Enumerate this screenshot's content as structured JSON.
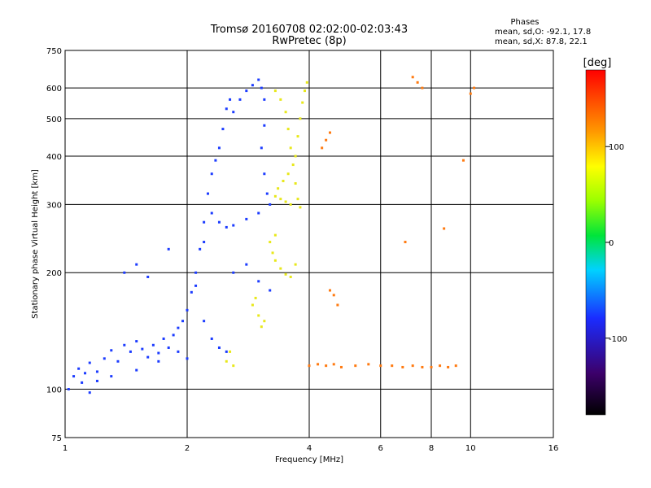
{
  "chart_data": {
    "type": "scatter",
    "title": "Tromsø 20160708 02:02:00-02:03:43",
    "subtitle": "RwPretec (8p)",
    "xlabel": "Frequency [MHz]",
    "ylabel": "Stationary phase Virtual Height [km]",
    "x_scale": "log",
    "y_scale": "log",
    "xlim": [
      1,
      16
    ],
    "ylim": [
      75,
      750
    ],
    "x_ticks": [
      1,
      2,
      4,
      6,
      8,
      10,
      16
    ],
    "y_ticks": [
      75,
      100,
      200,
      300,
      400,
      500,
      600,
      750
    ],
    "grid": true,
    "phase_stats": {
      "heading": "Phases",
      "line_o": "mean, sd,O: -92.1, 17.8",
      "line_x": "mean, sd,X:  87.8, 22.1"
    },
    "colorbar": {
      "label": "[deg]",
      "ticks": [
        100,
        0,
        -100
      ],
      "range": [
        -180,
        180
      ]
    },
    "series": [
      {
        "points": [
          [
            1.02,
            100
          ],
          [
            1.05,
            108
          ],
          [
            1.08,
            113
          ],
          [
            1.1,
            104
          ],
          [
            1.12,
            110
          ],
          [
            1.15,
            117
          ],
          [
            1.2,
            111
          ],
          [
            1.25,
            120
          ],
          [
            1.3,
            126
          ],
          [
            1.35,
            118
          ],
          [
            1.4,
            130
          ],
          [
            1.45,
            125
          ],
          [
            1.5,
            133
          ],
          [
            1.55,
            127
          ],
          [
            1.6,
            121
          ],
          [
            1.65,
            130
          ],
          [
            1.7,
            124
          ],
          [
            1.75,
            135
          ],
          [
            1.8,
            128
          ],
          [
            1.85,
            138
          ],
          [
            1.9,
            144
          ],
          [
            1.95,
            150
          ],
          [
            2.0,
            160
          ],
          [
            2.05,
            178
          ],
          [
            2.1,
            200
          ],
          [
            2.15,
            230
          ],
          [
            2.2,
            270
          ],
          [
            2.25,
            320
          ],
          [
            2.3,
            360
          ],
          [
            2.35,
            390
          ],
          [
            2.4,
            420
          ],
          [
            2.45,
            470
          ],
          [
            2.5,
            530
          ],
          [
            2.55,
            560
          ],
          [
            2.6,
            520
          ],
          [
            2.7,
            560
          ],
          [
            2.8,
            590
          ],
          [
            2.9,
            610
          ],
          [
            3.0,
            630
          ],
          [
            3.05,
            600
          ],
          [
            3.1,
            560
          ],
          [
            3.1,
            480
          ],
          [
            3.05,
            420
          ],
          [
            3.1,
            360
          ],
          [
            3.15,
            320
          ],
          [
            3.2,
            300
          ],
          [
            3.0,
            285
          ],
          [
            2.8,
            275
          ],
          [
            2.6,
            265
          ],
          [
            2.5,
            262
          ],
          [
            2.4,
            270
          ],
          [
            2.3,
            285
          ],
          [
            2.2,
            240
          ],
          [
            2.1,
            185
          ],
          [
            2.2,
            150
          ],
          [
            2.3,
            135
          ],
          [
            2.4,
            128
          ],
          [
            2.5,
            125
          ],
          [
            2.0,
            120
          ],
          [
            1.9,
            125
          ],
          [
            1.7,
            118
          ],
          [
            1.5,
            112
          ],
          [
            1.3,
            108
          ],
          [
            1.2,
            105
          ],
          [
            1.15,
            98
          ],
          [
            1.4,
            200
          ],
          [
            1.5,
            210
          ],
          [
            1.6,
            195
          ],
          [
            1.8,
            230
          ],
          [
            2.6,
            200
          ],
          [
            2.8,
            210
          ],
          [
            3.0,
            190
          ],
          [
            3.2,
            180
          ]
        ]
      },
      {
        "points": [
          [
            3.3,
            590
          ],
          [
            3.4,
            560
          ],
          [
            3.5,
            520
          ],
          [
            3.55,
            470
          ],
          [
            3.6,
            420
          ],
          [
            3.65,
            380
          ],
          [
            3.7,
            340
          ],
          [
            3.75,
            310
          ],
          [
            3.8,
            295
          ],
          [
            3.6,
            300
          ],
          [
            3.5,
            305
          ],
          [
            3.4,
            310
          ],
          [
            3.3,
            315
          ],
          [
            3.35,
            330
          ],
          [
            3.45,
            345
          ],
          [
            3.55,
            360
          ],
          [
            3.7,
            400
          ],
          [
            3.75,
            450
          ],
          [
            3.8,
            500
          ],
          [
            3.85,
            550
          ],
          [
            3.9,
            590
          ],
          [
            3.95,
            620
          ],
          [
            3.2,
            240
          ],
          [
            3.25,
            225
          ],
          [
            3.3,
            215
          ],
          [
            3.4,
            205
          ],
          [
            3.5,
            198
          ],
          [
            3.6,
            195
          ],
          [
            3.7,
            210
          ],
          [
            3.3,
            250
          ],
          [
            2.9,
            165
          ],
          [
            3.0,
            155
          ],
          [
            3.1,
            150
          ],
          [
            3.05,
            145
          ],
          [
            2.95,
            172
          ],
          [
            2.55,
            125
          ],
          [
            2.6,
            115
          ],
          [
            2.5,
            118
          ]
        ]
      },
      {
        "points": [
          [
            4.0,
            115
          ],
          [
            4.2,
            116
          ],
          [
            4.4,
            115
          ],
          [
            4.6,
            116
          ],
          [
            4.8,
            114
          ],
          [
            5.2,
            115
          ],
          [
            5.6,
            116
          ],
          [
            6.0,
            115
          ],
          [
            6.4,
            115
          ],
          [
            6.8,
            114
          ],
          [
            7.2,
            115
          ],
          [
            7.6,
            114
          ],
          [
            8.0,
            114
          ],
          [
            8.4,
            115
          ],
          [
            8.8,
            114
          ],
          [
            9.2,
            115
          ],
          [
            4.5,
            180
          ],
          [
            4.6,
            175
          ],
          [
            4.7,
            165
          ],
          [
            4.3,
            420
          ],
          [
            4.4,
            440
          ],
          [
            4.5,
            460
          ],
          [
            7.2,
            640
          ],
          [
            7.4,
            620
          ],
          [
            7.6,
            600
          ],
          [
            9.6,
            390
          ],
          [
            10.2,
            600
          ],
          [
            10.0,
            580
          ],
          [
            8.6,
            260
          ],
          [
            6.9,
            240
          ]
        ]
      }
    ]
  }
}
